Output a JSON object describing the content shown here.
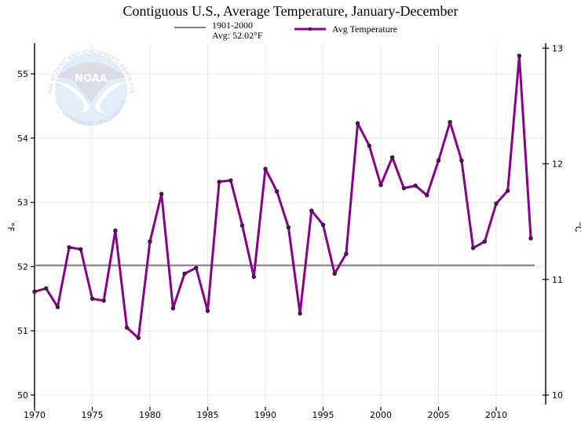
{
  "chart_data": {
    "type": "line",
    "title": "Contiguous U.S., Average Temperature, January-December",
    "xlabel": "",
    "ylabel": "°F",
    "ylabel_right": "°C",
    "xlim": [
      1970,
      2014
    ],
    "ylim": [
      50,
      55.5
    ],
    "ylim_right": [
      10,
      13.06
    ],
    "x_ticks": [
      "1970",
      "1975",
      "1980",
      "1985",
      "1990",
      "1995",
      "2000",
      "2005",
      "2010"
    ],
    "x_tick_values": [
      1970,
      1975,
      1980,
      1985,
      1990,
      1995,
      2000,
      2005,
      2010
    ],
    "y_ticks": [
      "50",
      "51",
      "52",
      "53",
      "54",
      "55"
    ],
    "y_tick_values": [
      50,
      51,
      52,
      53,
      54,
      55
    ],
    "y_right_ticks": [
      "10",
      "11",
      "12",
      "13"
    ],
    "y_right_tick_values": [
      10,
      11,
      12,
      13
    ],
    "grid": true,
    "legend_position": "top-center",
    "reference_line": {
      "name": "1901-2000",
      "label_line1": "1901-2000",
      "label_line2": "Avg: 52.02°F",
      "value": 52.02,
      "color": "#808080"
    },
    "series": [
      {
        "name": "Avg Temperature",
        "color": "#8b008b",
        "marker_color": "#4a1a4a",
        "x": [
          1970,
          1971,
          1972,
          1973,
          1974,
          1975,
          1976,
          1977,
          1978,
          1979,
          1980,
          1981,
          1982,
          1983,
          1984,
          1985,
          1986,
          1987,
          1988,
          1989,
          1990,
          1991,
          1992,
          1993,
          1994,
          1995,
          1996,
          1997,
          1998,
          1999,
          2000,
          2001,
          2002,
          2003,
          2004,
          2005,
          2006,
          2007,
          2008,
          2009,
          2010,
          2011,
          2012,
          2013
        ],
        "values": [
          51.61,
          51.66,
          51.37,
          52.3,
          52.27,
          51.5,
          51.47,
          52.56,
          51.05,
          50.89,
          52.39,
          53.13,
          51.35,
          51.89,
          51.98,
          51.31,
          53.32,
          53.34,
          52.64,
          51.84,
          53.52,
          53.17,
          52.61,
          51.27,
          52.87,
          52.65,
          51.89,
          52.2,
          54.23,
          53.88,
          53.27,
          53.7,
          53.22,
          53.26,
          53.11,
          53.65,
          54.25,
          53.65,
          52.29,
          52.39,
          52.98,
          53.18,
          55.28,
          52.44
        ]
      }
    ],
    "watermark": {
      "name": "NOAA",
      "ring_text_top": "NATIONAL OCEANIC AND ATMOSPHERIC ADMINISTRATION",
      "ring_text_bottom": "U.S. DEPARTMENT OF COMMERCE"
    }
  }
}
